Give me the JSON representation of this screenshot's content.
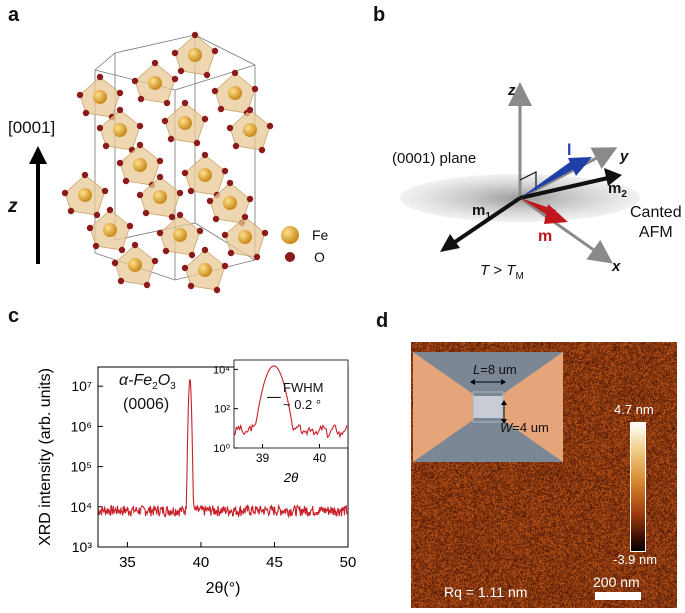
{
  "panels": {
    "a": {
      "label": "a",
      "direction_label": "[0001]",
      "axis_label": "z",
      "legend": [
        {
          "name": "Fe",
          "color": "#d9a23a"
        },
        {
          "name": "O",
          "color": "#8b1a1a"
        }
      ]
    },
    "b": {
      "label": "b",
      "axis_z": "z",
      "axis_y": "y",
      "axis_x": "x",
      "plane_label": "(0001) plane",
      "vec_l": "l",
      "vec_m": "m",
      "vec_m1": "m",
      "vec_m1_sub": "1",
      "vec_m2": "m",
      "vec_m2_sub": "2",
      "state_label_line1": "Canted",
      "state_label_line2": "AFM",
      "temp_T": "T",
      "temp_relation": " > ",
      "temp_TM": "T",
      "temp_TM_sub": "M",
      "colors": {
        "l": "#1f3fa8",
        "m": "#c0161e",
        "m12": "#111111",
        "axis": "#8a8a8a"
      }
    },
    "c": {
      "label": "c",
      "material_prefix": "α-Fe",
      "material_sub1": "2",
      "material_mid": "O",
      "material_sub2": "3",
      "reflection": "(0006)",
      "inset_fwhm": "FWHM",
      "inset_value": "~ 0.2 °",
      "inset_xlabel": "2θ"
    },
    "d": {
      "label": "d",
      "L_label": "L",
      "L_value": "=8 um",
      "W_label": "W",
      "W_value": "=4 um",
      "scale_max": "4.7 nm",
      "scale_min": "-3.9 nm",
      "roughness": "Rq = 1.11 nm",
      "scalebar": "200 nm"
    }
  },
  "chart_data": [
    {
      "type": "line",
      "xlabel": "2θ(°)",
      "ylabel": "XRD intensity (arb. units)",
      "xlim": [
        33,
        50
      ],
      "ylim": [
        1000,
        30000000
      ],
      "yscale": "log",
      "xticks": [
        "35",
        "40",
        "45",
        "50"
      ],
      "yticks": [
        "10³",
        "10⁴",
        "10⁵",
        "10⁶",
        "10⁷"
      ],
      "series": [
        {
          "color": "#c8202a",
          "baseline": 8000,
          "peak": {
            "x": 39.25,
            "y": 15000000
          }
        }
      ]
    },
    {
      "type": "line",
      "xlabel": "2θ",
      "xlim": [
        38.5,
        40.5
      ],
      "ylim": [
        1,
        30000
      ],
      "yscale": "log",
      "xticks": [
        "39",
        "40"
      ],
      "yticks": [
        "10⁰",
        "10²",
        "10⁴"
      ],
      "series": [
        {
          "color": "#c8202a",
          "baseline": 8,
          "peak": {
            "x": 39.2,
            "y": 15000
          }
        }
      ]
    }
  ]
}
